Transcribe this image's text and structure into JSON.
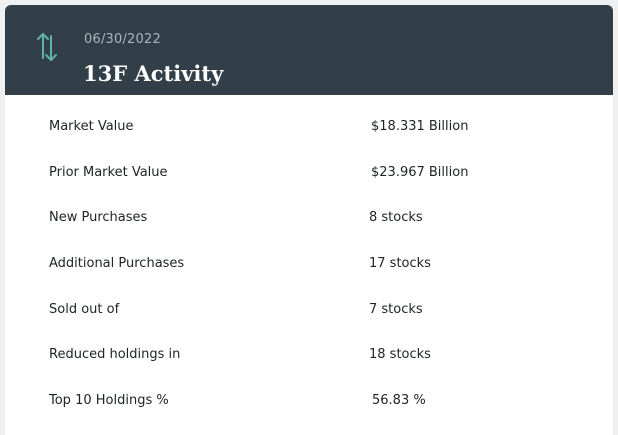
{
  "header": {
    "date": "06/30/2022",
    "title": "13F Activity",
    "icon": "swap-vertical-icon",
    "icon_color": "#5fb3a8",
    "background": "#333f48"
  },
  "rows": [
    {
      "label": "Market Value",
      "value": "$18.331 Billion"
    },
    {
      "label": "Prior Market Value",
      "value": "$23.967 Billion"
    },
    {
      "label": "New Purchases",
      "value": "8 stocks"
    },
    {
      "label": "Additional Purchases",
      "value": "17 stocks"
    },
    {
      "label": "Sold out of",
      "value": "7 stocks"
    },
    {
      "label": "Reduced holdings in",
      "value": "18 stocks"
    },
    {
      "label": "Top 10 Holdings %",
      "value": "56.83 %"
    }
  ]
}
